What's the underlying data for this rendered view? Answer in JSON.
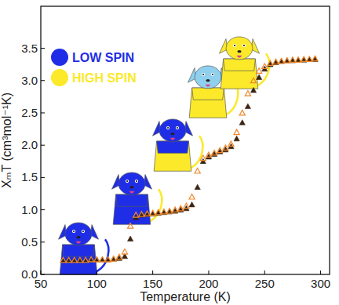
{
  "chart_data": {
    "type": "scatter",
    "x_label": "Temperature (K)",
    "y_label": "XₘT (cm³mol⁻¹K)",
    "annotations": [
      {
        "text": "LOW SPIN",
        "color": "#1f2ee6"
      },
      {
        "text": "HIGH SPIN",
        "color": "#fbe92a"
      }
    ],
    "x": [
      70,
      75,
      80,
      85,
      90,
      95,
      100,
      105,
      110,
      115,
      120,
      125,
      130,
      135,
      140,
      145,
      150,
      155,
      160,
      165,
      170,
      175,
      180,
      185,
      190,
      195,
      200,
      205,
      210,
      215,
      220,
      225,
      230,
      235,
      240,
      245,
      250,
      255,
      260,
      265,
      270,
      275,
      280,
      285,
      290,
      295
    ],
    "series": [
      {
        "color": "#3a2412",
        "marker": "triangle",
        "values": [
          0.22,
          0.22,
          0.22,
          0.22,
          0.22,
          0.23,
          0.23,
          0.23,
          0.23,
          0.24,
          0.25,
          0.28,
          0.55,
          0.88,
          0.92,
          0.93,
          0.94,
          0.95,
          0.96,
          0.97,
          0.98,
          1.0,
          1.02,
          1.08,
          1.35,
          1.75,
          1.82,
          1.86,
          1.9,
          1.93,
          1.98,
          2.1,
          2.35,
          2.6,
          2.85,
          3.05,
          3.18,
          3.25,
          3.28,
          3.3,
          3.31,
          3.31,
          3.32,
          3.32,
          3.33,
          3.33
        ]
      },
      {
        "color": "#f0882a",
        "marker": "open-triangle",
        "values": [
          0.22,
          0.22,
          0.22,
          0.22,
          0.22,
          0.23,
          0.23,
          0.23,
          0.23,
          0.24,
          0.27,
          0.35,
          0.75,
          0.92,
          0.93,
          0.94,
          0.95,
          0.96,
          0.97,
          0.98,
          1.0,
          1.02,
          1.06,
          1.2,
          1.6,
          1.8,
          1.85,
          1.88,
          1.92,
          1.96,
          2.02,
          2.2,
          2.5,
          2.8,
          3.0,
          3.15,
          3.22,
          3.27,
          3.29,
          3.3,
          3.31,
          3.32,
          3.32,
          3.33,
          3.33,
          3.34
        ]
      }
    ],
    "xlim": [
      50,
      308
    ],
    "ylim": [
      0,
      4.15
    ],
    "xticks": [
      50,
      100,
      150,
      200,
      250,
      300
    ],
    "yticks": [
      {
        "value": 0,
        "label": "0.0"
      },
      {
        "value": 0.5,
        "label": "0.5"
      },
      {
        "value": 1,
        "label": "1.0"
      },
      {
        "value": 1.5,
        "label": "1.5"
      },
      {
        "value": 2,
        "label": "2.0"
      },
      {
        "value": 2.5,
        "label": "2.5"
      },
      {
        "value": 3,
        "label": "3.0"
      },
      {
        "value": 3.5,
        "label": "3.5"
      }
    ],
    "grid": false
  }
}
